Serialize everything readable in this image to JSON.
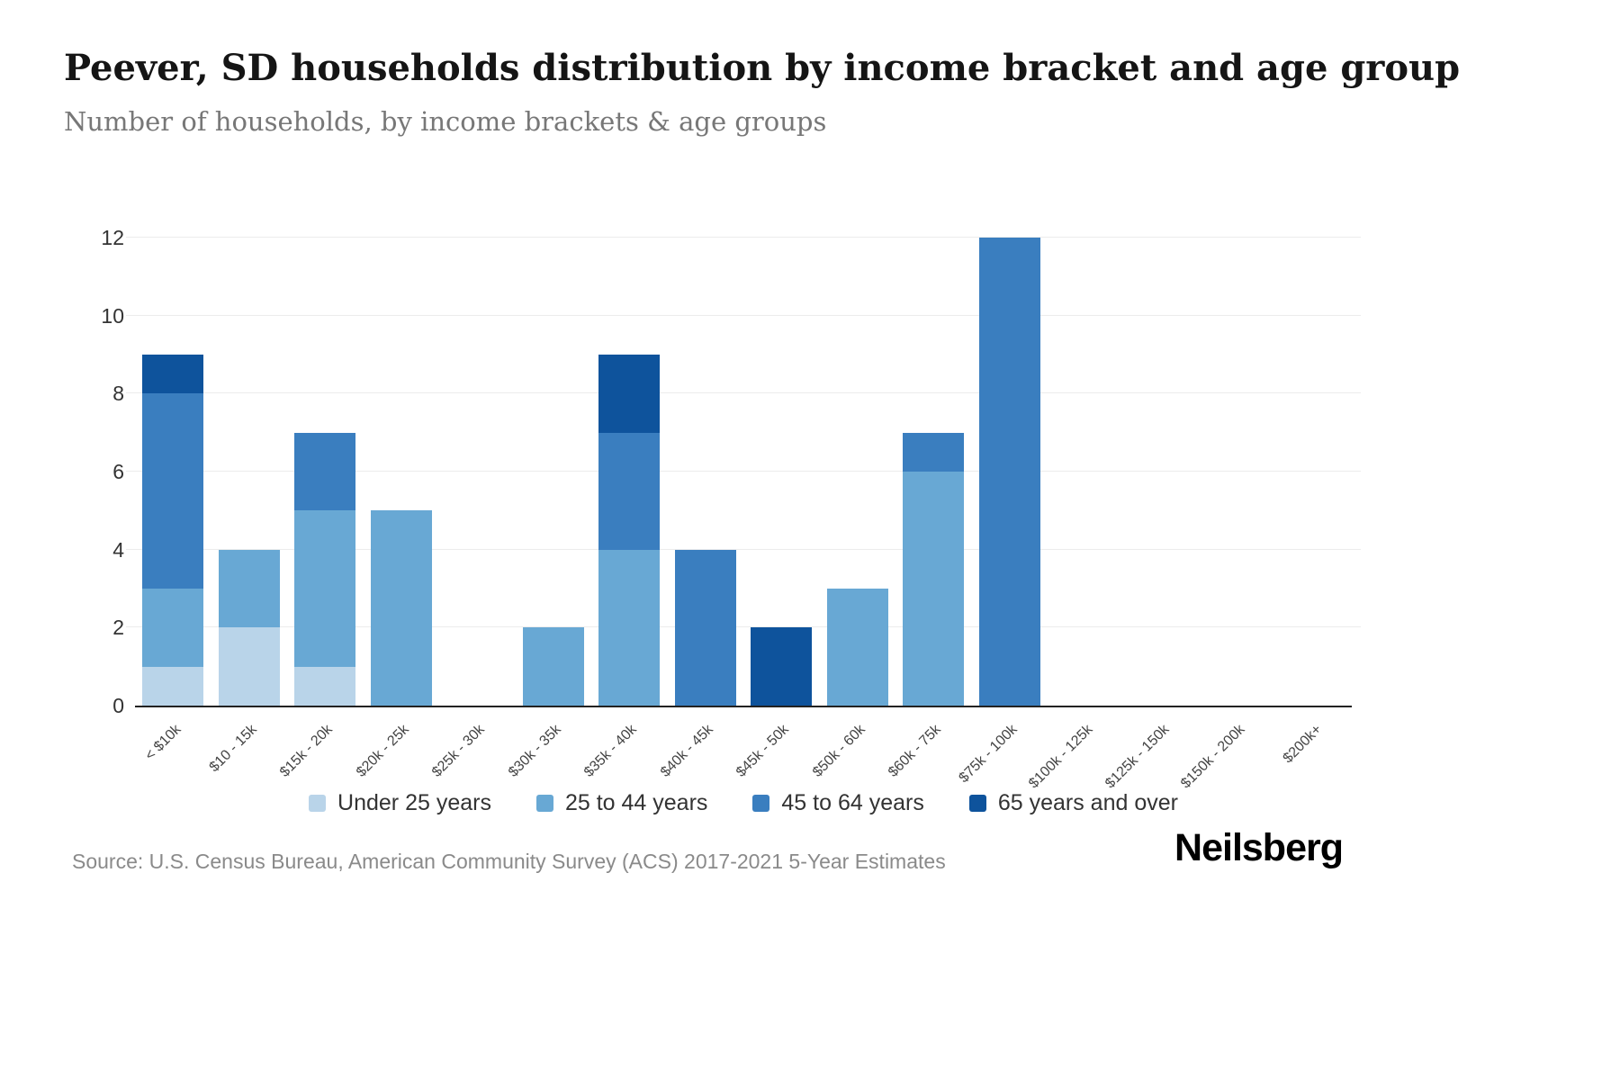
{
  "header": {
    "title": "Peever, SD households distribution by income bracket and age group",
    "subtitle": "Number of households, by income brackets & age groups"
  },
  "footer": {
    "source": "Source: U.S. Census Bureau, American Community Survey (ACS) 2017-2021 5-Year Estimates",
    "brand": "Neilsberg"
  },
  "chart_data": {
    "type": "bar",
    "stacked": true,
    "title": "Peever, SD households distribution by income bracket and age group",
    "xlabel": "",
    "ylabel": "Number of households",
    "ylim": [
      0,
      12
    ],
    "yticks": [
      0,
      2,
      4,
      6,
      8,
      10,
      12
    ],
    "grid": true,
    "legend_position": "bottom",
    "categories": [
      "< $10k",
      "$10 - 15k",
      "$15k - 20k",
      "$20k - 25k",
      "$25k - 30k",
      "$30k - 35k",
      "$35k - 40k",
      "$40k - 45k",
      "$45k - 50k",
      "$50k - 60k",
      "$60k - 75k",
      "$75k - 100k",
      "$100k - 125k",
      "$125k - 150k",
      "$150k - 200k",
      "$200k+"
    ],
    "series": [
      {
        "name": "Under 25 years",
        "color": "#b9d4e9",
        "values": [
          1,
          2,
          1,
          0,
          0,
          0,
          0,
          0,
          0,
          0,
          0,
          0,
          0,
          0,
          0,
          0
        ]
      },
      {
        "name": "25 to 44 years",
        "color": "#68a8d4",
        "values": [
          2,
          2,
          4,
          5,
          0,
          2,
          4,
          0,
          0,
          3,
          6,
          0,
          0,
          0,
          0,
          0
        ]
      },
      {
        "name": "45 to 64 years",
        "color": "#3a7ebf",
        "values": [
          5,
          0,
          2,
          0,
          0,
          0,
          3,
          4,
          0,
          0,
          1,
          12,
          0,
          0,
          0,
          0
        ]
      },
      {
        "name": "65 years and over",
        "color": "#0e539c",
        "values": [
          1,
          0,
          0,
          0,
          0,
          0,
          2,
          0,
          2,
          0,
          0,
          0,
          0,
          0,
          0,
          0
        ]
      }
    ]
  }
}
